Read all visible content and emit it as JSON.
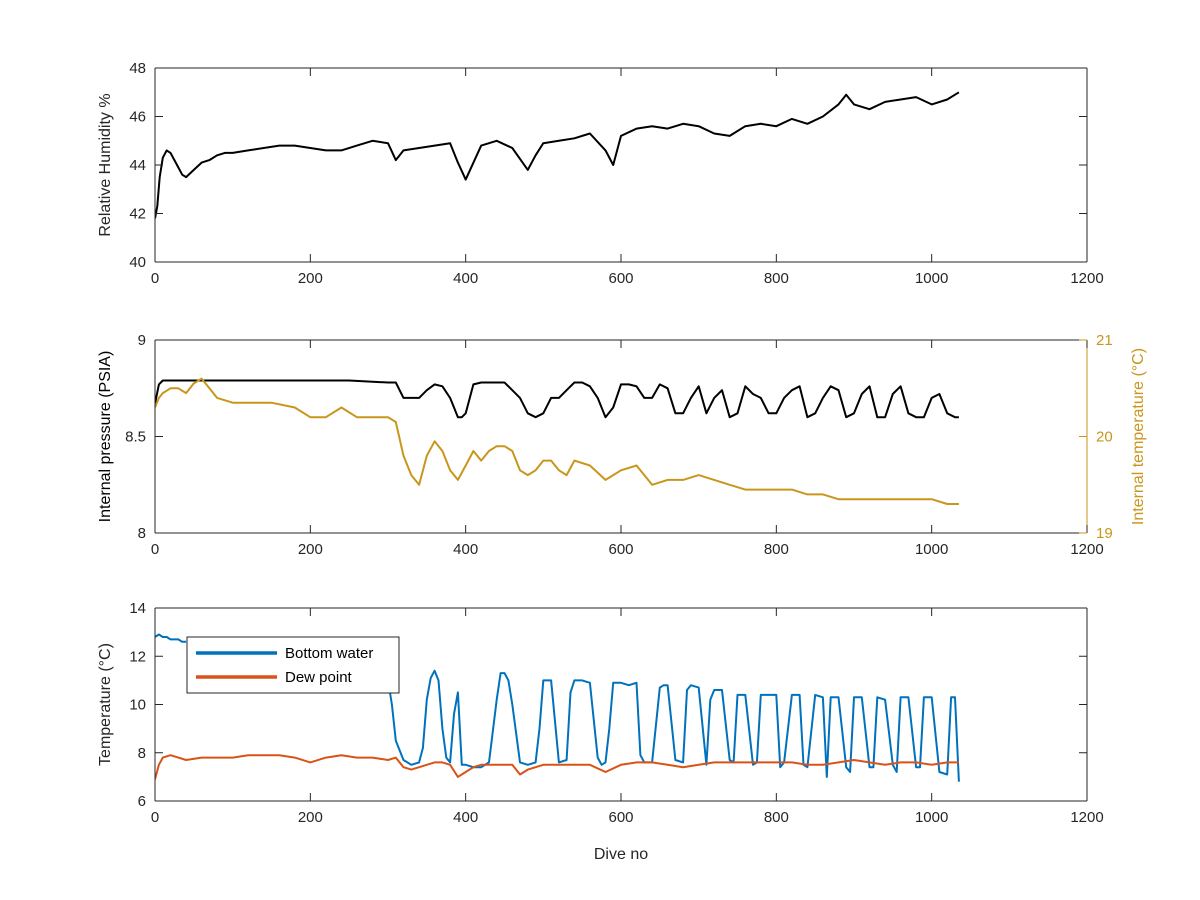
{
  "chart_data": [
    {
      "type": "line",
      "xlabel": "",
      "ylabel": "Relative Humidity %",
      "xlim": [
        0,
        1200
      ],
      "ylim": [
        40,
        48
      ],
      "xticks": [
        0,
        200,
        400,
        600,
        800,
        1000,
        1200
      ],
      "yticks": [
        40,
        42,
        44,
        46,
        48
      ],
      "grid": false,
      "series": [
        {
          "color": "#000000",
          "x": [
            0,
            3,
            6,
            10,
            15,
            20,
            25,
            30,
            35,
            40,
            50,
            60,
            70,
            80,
            90,
            100,
            120,
            140,
            160,
            180,
            200,
            220,
            240,
            260,
            280,
            300,
            310,
            320,
            340,
            360,
            380,
            390,
            400,
            420,
            440,
            460,
            480,
            490,
            500,
            520,
            540,
            560,
            580,
            590,
            600,
            620,
            640,
            660,
            680,
            700,
            720,
            740,
            760,
            780,
            800,
            820,
            840,
            860,
            880,
            890,
            900,
            920,
            940,
            960,
            980,
            1000,
            1020,
            1035
          ],
          "y": [
            41.8,
            42.3,
            43.5,
            44.3,
            44.6,
            44.5,
            44.2,
            43.9,
            43.6,
            43.5,
            43.8,
            44.1,
            44.2,
            44.4,
            44.5,
            44.5,
            44.6,
            44.7,
            44.8,
            44.8,
            44.7,
            44.6,
            44.6,
            44.8,
            45.0,
            44.9,
            44.2,
            44.6,
            44.7,
            44.8,
            44.9,
            44.1,
            43.4,
            44.8,
            45.0,
            44.7,
            43.8,
            44.4,
            44.9,
            45.0,
            45.1,
            45.3,
            44.6,
            44.0,
            45.2,
            45.5,
            45.6,
            45.5,
            45.7,
            45.6,
            45.3,
            45.2,
            45.6,
            45.7,
            45.6,
            45.9,
            45.7,
            46.0,
            46.5,
            46.9,
            46.5,
            46.3,
            46.6,
            46.7,
            46.8,
            46.5,
            46.7,
            47.0
          ]
        }
      ]
    },
    {
      "type": "line",
      "xlabel": "",
      "ylabel": "Internal pressure (PSIA)",
      "ylabel_right": "Internal temperature (°C)",
      "xlim": [
        0,
        1200
      ],
      "ylim": [
        8,
        9
      ],
      "ylim_right": [
        19,
        21
      ],
      "xticks": [
        0,
        200,
        400,
        600,
        800,
        1000,
        1200
      ],
      "yticks": [
        8,
        8.5,
        9
      ],
      "yticks_right": [
        19,
        20,
        21
      ],
      "grid": false,
      "series": [
        {
          "color": "#000000",
          "axis": "left",
          "x": [
            0,
            5,
            10,
            50,
            100,
            150,
            200,
            250,
            300,
            310,
            320,
            330,
            340,
            350,
            360,
            370,
            380,
            385,
            390,
            395,
            400,
            410,
            420,
            430,
            440,
            450,
            460,
            470,
            480,
            490,
            500,
            510,
            520,
            530,
            540,
            550,
            560,
            570,
            580,
            590,
            600,
            610,
            620,
            630,
            640,
            650,
            660,
            670,
            680,
            690,
            700,
            710,
            720,
            730,
            740,
            750,
            760,
            770,
            780,
            790,
            800,
            810,
            820,
            830,
            840,
            850,
            860,
            870,
            880,
            890,
            900,
            910,
            920,
            930,
            940,
            950,
            960,
            970,
            980,
            990,
            1000,
            1010,
            1020,
            1030,
            1035
          ],
          "y": [
            8.67,
            8.77,
            8.79,
            8.79,
            8.79,
            8.79,
            8.79,
            8.79,
            8.78,
            8.78,
            8.7,
            8.7,
            8.7,
            8.74,
            8.77,
            8.76,
            8.7,
            8.65,
            8.6,
            8.6,
            8.62,
            8.77,
            8.78,
            8.78,
            8.78,
            8.78,
            8.74,
            8.7,
            8.62,
            8.6,
            8.62,
            8.7,
            8.7,
            8.74,
            8.78,
            8.78,
            8.76,
            8.7,
            8.6,
            8.65,
            8.77,
            8.77,
            8.76,
            8.7,
            8.7,
            8.77,
            8.75,
            8.62,
            8.62,
            8.7,
            8.76,
            8.62,
            8.7,
            8.74,
            8.6,
            8.62,
            8.76,
            8.72,
            8.7,
            8.62,
            8.62,
            8.7,
            8.74,
            8.76,
            8.6,
            8.62,
            8.7,
            8.76,
            8.74,
            8.6,
            8.62,
            8.72,
            8.76,
            8.6,
            8.6,
            8.72,
            8.76,
            8.62,
            8.6,
            8.6,
            8.7,
            8.72,
            8.62,
            8.6,
            8.6
          ]
        },
        {
          "color": "#c9961c",
          "axis": "right",
          "x": [
            0,
            5,
            10,
            20,
            30,
            40,
            50,
            60,
            70,
            80,
            100,
            120,
            150,
            180,
            200,
            220,
            240,
            260,
            280,
            300,
            310,
            320,
            330,
            340,
            350,
            360,
            370,
            380,
            390,
            400,
            410,
            420,
            430,
            440,
            450,
            460,
            470,
            480,
            490,
            500,
            510,
            520,
            530,
            540,
            560,
            580,
            600,
            620,
            640,
            660,
            680,
            700,
            720,
            740,
            760,
            780,
            800,
            820,
            840,
            860,
            880,
            900,
            920,
            940,
            960,
            980,
            1000,
            1020,
            1030,
            1035
          ],
          "y": [
            20.3,
            20.4,
            20.45,
            20.5,
            20.5,
            20.45,
            20.55,
            20.6,
            20.5,
            20.4,
            20.35,
            20.35,
            20.35,
            20.3,
            20.2,
            20.2,
            20.3,
            20.2,
            20.2,
            20.2,
            20.15,
            19.8,
            19.6,
            19.5,
            19.8,
            19.95,
            19.85,
            19.65,
            19.55,
            19.7,
            19.85,
            19.75,
            19.85,
            19.9,
            19.9,
            19.85,
            19.65,
            19.6,
            19.65,
            19.75,
            19.75,
            19.65,
            19.6,
            19.75,
            19.7,
            19.55,
            19.65,
            19.7,
            19.5,
            19.55,
            19.55,
            19.6,
            19.55,
            19.5,
            19.45,
            19.45,
            19.45,
            19.45,
            19.4,
            19.4,
            19.35,
            19.35,
            19.35,
            19.35,
            19.35,
            19.35,
            19.35,
            19.3,
            19.3,
            19.3
          ]
        }
      ]
    },
    {
      "type": "line",
      "xlabel": "Dive no",
      "ylabel": "Temperature (°C)",
      "xlim": [
        0,
        1200
      ],
      "ylim": [
        6,
        14
      ],
      "xticks": [
        0,
        200,
        400,
        600,
        800,
        1000,
        1200
      ],
      "yticks": [
        6,
        8,
        10,
        12,
        14
      ],
      "grid": false,
      "legend_position": "top-left",
      "series": [
        {
          "name": "Bottom water",
          "color": "#0072bd",
          "x": [
            0,
            5,
            10,
            15,
            20,
            25,
            30,
            35,
            40,
            50,
            60,
            80,
            100,
            150,
            200,
            250,
            290,
            300,
            305,
            310,
            320,
            330,
            340,
            345,
            350,
            355,
            360,
            365,
            370,
            375,
            380,
            385,
            390,
            395,
            400,
            410,
            420,
            430,
            440,
            445,
            450,
            455,
            460,
            470,
            480,
            490,
            495,
            500,
            510,
            520,
            530,
            535,
            540,
            550,
            560,
            570,
            575,
            580,
            585,
            590,
            600,
            610,
            620,
            625,
            630,
            640,
            650,
            655,
            660,
            670,
            680,
            685,
            690,
            700,
            710,
            715,
            720,
            730,
            740,
            745,
            750,
            760,
            770,
            775,
            780,
            790,
            800,
            805,
            810,
            820,
            830,
            835,
            840,
            850,
            860,
            865,
            870,
            880,
            890,
            895,
            900,
            910,
            920,
            925,
            930,
            940,
            950,
            955,
            960,
            970,
            980,
            985,
            990,
            1000,
            1010,
            1020,
            1025,
            1030,
            1035
          ],
          "y": [
            12.8,
            12.9,
            12.8,
            12.8,
            12.7,
            12.7,
            12.7,
            12.6,
            12.6,
            null,
            null,
            null,
            null,
            null,
            null,
            null,
            null,
            11.0,
            10.0,
            8.5,
            7.7,
            7.5,
            7.6,
            8.2,
            10.2,
            11.1,
            11.4,
            11.0,
            9.0,
            7.8,
            7.6,
            9.6,
            10.5,
            7.5,
            7.5,
            7.4,
            7.4,
            7.6,
            10.2,
            11.3,
            11.3,
            11.0,
            10.0,
            7.6,
            7.5,
            7.6,
            9.0,
            11.0,
            11.0,
            7.6,
            7.7,
            10.5,
            11.0,
            11.0,
            10.9,
            7.8,
            7.5,
            7.6,
            9.0,
            10.9,
            10.9,
            10.8,
            10.9,
            7.9,
            7.6,
            7.6,
            10.7,
            10.8,
            10.8,
            7.7,
            7.6,
            10.6,
            10.8,
            10.7,
            7.5,
            10.2,
            10.6,
            10.6,
            7.7,
            7.6,
            10.4,
            10.4,
            7.5,
            7.6,
            10.4,
            10.4,
            10.4,
            7.4,
            7.6,
            10.4,
            10.4,
            7.5,
            7.4,
            10.4,
            10.3,
            7.0,
            10.3,
            10.3,
            7.4,
            7.2,
            10.3,
            10.3,
            7.4,
            7.4,
            10.3,
            10.2,
            7.5,
            7.2,
            10.3,
            10.3,
            7.4,
            7.4,
            10.3,
            10.3,
            7.2,
            7.1,
            10.3,
            10.3,
            6.8
          ]
        },
        {
          "name": "Dew point",
          "color": "#d95319",
          "x": [
            0,
            5,
            10,
            20,
            30,
            40,
            60,
            80,
            100,
            120,
            140,
            160,
            180,
            200,
            220,
            240,
            260,
            280,
            300,
            310,
            320,
            330,
            340,
            350,
            360,
            370,
            380,
            390,
            400,
            410,
            420,
            440,
            460,
            470,
            480,
            500,
            520,
            540,
            560,
            580,
            600,
            620,
            640,
            660,
            680,
            700,
            720,
            740,
            760,
            780,
            800,
            820,
            840,
            860,
            880,
            900,
            920,
            940,
            960,
            980,
            1000,
            1020,
            1035
          ],
          "y": [
            6.9,
            7.5,
            7.8,
            7.9,
            7.8,
            7.7,
            7.8,
            7.8,
            7.8,
            7.9,
            7.9,
            7.9,
            7.8,
            7.6,
            7.8,
            7.9,
            7.8,
            7.8,
            7.7,
            7.8,
            7.4,
            7.3,
            7.4,
            7.5,
            7.6,
            7.6,
            7.5,
            7.0,
            7.2,
            7.4,
            7.5,
            7.5,
            7.5,
            7.1,
            7.3,
            7.5,
            7.5,
            7.5,
            7.5,
            7.2,
            7.5,
            7.6,
            7.6,
            7.5,
            7.4,
            7.5,
            7.6,
            7.6,
            7.6,
            7.6,
            7.6,
            7.6,
            7.5,
            7.5,
            7.6,
            7.7,
            7.6,
            7.5,
            7.6,
            7.6,
            7.5,
            7.6,
            7.6
          ]
        }
      ]
    }
  ]
}
